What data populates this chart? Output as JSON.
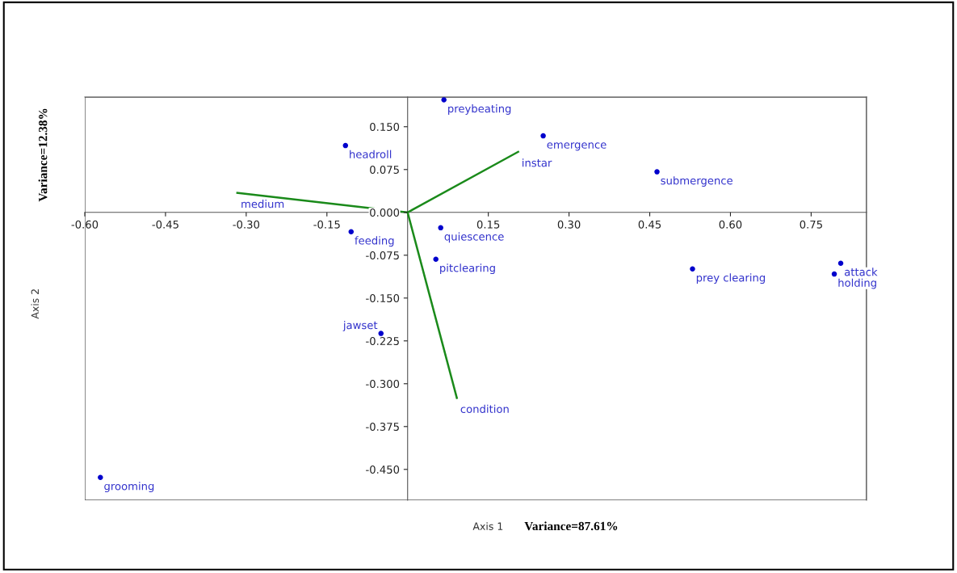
{
  "chart_data": {
    "type": "scatter",
    "xlabel": "Axis 1",
    "ylabel": "Axis 2",
    "xlim": [
      -0.6,
      0.853
    ],
    "ylim": [
      -0.504,
      0.202
    ],
    "xticks": [
      {
        "value": -0.6,
        "label": "-0.60"
      },
      {
        "value": -0.45,
        "label": "-0.45"
      },
      {
        "value": -0.3,
        "label": "-0.30"
      },
      {
        "value": -0.15,
        "label": "-0.15"
      },
      {
        "value": 0.15,
        "label": "0.15"
      },
      {
        "value": 0.3,
        "label": "0.30"
      },
      {
        "value": 0.45,
        "label": "0.45"
      },
      {
        "value": 0.6,
        "label": "0.60"
      },
      {
        "value": 0.75,
        "label": "0.75"
      }
    ],
    "yticks": [
      {
        "value": -0.45,
        "label": "-0.450"
      },
      {
        "value": -0.375,
        "label": "-0.375"
      },
      {
        "value": -0.3,
        "label": "-0.300"
      },
      {
        "value": -0.225,
        "label": "-0.225"
      },
      {
        "value": -0.15,
        "label": "-0.150"
      },
      {
        "value": -0.075,
        "label": "-0.075"
      },
      {
        "value": 0,
        "label": "0.000"
      },
      {
        "value": 0.075,
        "label": "0.075"
      },
      {
        "value": 0.15,
        "label": "0.150"
      }
    ],
    "grid": false,
    "marker": "circle",
    "series": [
      {
        "color": "#0000cc",
        "x": [
          0.0675,
          -0.1155,
          0.252,
          0.4635,
          -0.105,
          0.0615,
          0.0525,
          0.5295,
          0.805,
          0.793,
          -0.0495,
          -0.571
        ],
        "values": [
          0.197,
          0.117,
          0.134,
          0.071,
          -0.034,
          -0.027,
          -0.082,
          -0.099,
          -0.089,
          -0.108,
          -0.212,
          -0.464
        ]
      },
      {
        "type": "line",
        "marker": "none",
        "name": "medium",
        "color": "#1a8a1a",
        "x": [
          0,
          -0.3165
        ],
        "values": [
          0,
          0.034
        ]
      },
      {
        "type": "line",
        "marker": "none",
        "name": "instar",
        "color": "#1a8a1a",
        "x": [
          0,
          0.2055
        ],
        "values": [
          0,
          0.106
        ]
      },
      {
        "type": "line",
        "marker": "none",
        "name": "condition",
        "color": "#1a8a1a",
        "x": [
          0,
          0.0915
        ],
        "values": [
          0,
          -0.325
        ]
      }
    ],
    "annotations": [
      {
        "text": "preybeating",
        "x": 0.0675,
        "y": 0.197
      },
      {
        "text": "headroll",
        "x": -0.1155,
        "y": 0.117
      },
      {
        "text": "emergence",
        "x": 0.252,
        "y": 0.134
      },
      {
        "text": "submergence",
        "x": 0.4635,
        "y": 0.071
      },
      {
        "text": "feeding",
        "x": -0.105,
        "y": -0.034
      },
      {
        "text": "quiescence",
        "x": 0.0615,
        "y": -0.027
      },
      {
        "text": "pitclearing",
        "x": 0.0525,
        "y": -0.082
      },
      {
        "text": "prey clearing",
        "x": 0.5295,
        "y": -0.099
      },
      {
        "text": "attack",
        "x": 0.805,
        "y": -0.089
      },
      {
        "text": "holding",
        "x": 0.793,
        "y": -0.108
      },
      {
        "text": "jawset",
        "x": -0.0495,
        "y": -0.212
      },
      {
        "text": "grooming",
        "x": -0.571,
        "y": -0.464
      },
      "Variance=87.61%",
      "Variance=12.38%"
    ]
  }
}
